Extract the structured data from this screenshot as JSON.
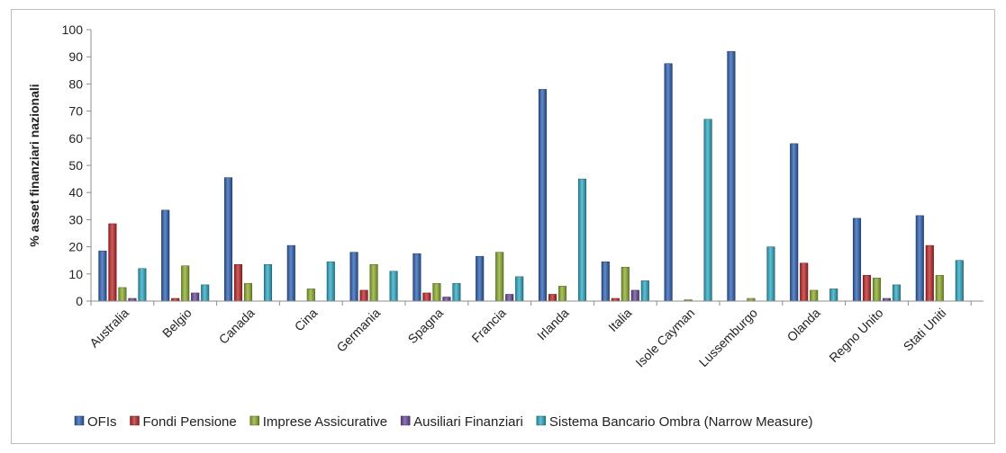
{
  "chart_data": {
    "type": "bar",
    "title": "",
    "xlabel": "",
    "ylabel": "% asset finanziari nazionali",
    "ylim": [
      0,
      100
    ],
    "yticks": [
      0,
      10,
      20,
      30,
      40,
      50,
      60,
      70,
      80,
      90,
      100
    ],
    "grid": false,
    "legend_position": "bottom",
    "categories": [
      "Australia",
      "Belgio",
      "Canada",
      "Cina",
      "Germania",
      "Spagna",
      "Francia",
      "Irlanda",
      "Italia",
      "Isole Cayman",
      "Lussemburgo",
      "Olanda",
      "Regno Unito",
      "Stati Uniti"
    ],
    "series": [
      {
        "name": "OFIs",
        "color": "#2f62b4",
        "values": [
          18.5,
          33.5,
          45.5,
          20.5,
          18,
          17.5,
          16.5,
          78,
          14.5,
          87.5,
          92,
          58,
          30.5,
          31.5
        ]
      },
      {
        "name": "Fondi Pensione",
        "color": "#c0282a",
        "values": [
          28.5,
          1,
          13.5,
          0,
          4,
          3,
          0,
          2.5,
          1,
          0,
          0,
          14,
          9.5,
          20.5
        ]
      },
      {
        "name": "Imprese Assicurative",
        "color": "#8fae2e",
        "values": [
          5,
          13,
          6.5,
          4.5,
          13.5,
          6.5,
          18,
          5.5,
          12.5,
          0.5,
          1,
          4,
          8.5,
          9.5
        ]
      },
      {
        "name": "Ausiliari Finanziari",
        "color": "#6a4a9c",
        "values": [
          1,
          3,
          0,
          0,
          0,
          1.5,
          2.5,
          0,
          4,
          0,
          0,
          0,
          1,
          0
        ]
      },
      {
        "name": "Sistema Bancario Ombra (Narrow Measure)",
        "color": "#2fa9c4",
        "values": [
          12,
          6,
          13.5,
          14.5,
          11,
          6.5,
          9,
          45,
          7.5,
          67,
          20,
          4.5,
          6,
          15
        ]
      }
    ]
  }
}
